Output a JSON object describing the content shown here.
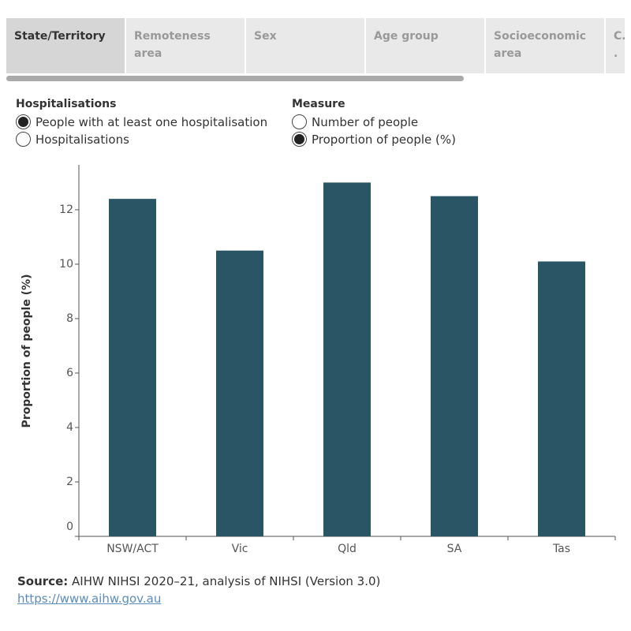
{
  "tabs": {
    "items": [
      "State/Territory",
      "Remoteness area",
      "Sex",
      "Age group",
      "Socioeconomic area",
      "C. ."
    ],
    "selected": 0
  },
  "controls": [
    {
      "title": "Hospitalisations",
      "options": [
        "People with at least one hospitalisation",
        "Hospitalisations"
      ],
      "selected": 0
    },
    {
      "title": "Measure",
      "options": [
        "Number of people",
        "Proportion of people (%)"
      ],
      "selected": 1
    }
  ],
  "chart_data": {
    "type": "bar",
    "y_label": "Proportion of people (%)",
    "categories": [
      "NSW/ACT",
      "Vic",
      "Qld",
      "SA",
      "Tas"
    ],
    "values": [
      12.4,
      10.5,
      13.0,
      12.5,
      10.1
    ],
    "color": "#2a5565",
    "ylim": [
      0,
      13.65
    ],
    "yticks": [
      0,
      2,
      4,
      6,
      8,
      10,
      12
    ],
    "grid": false
  },
  "source": {
    "label": "Source:",
    "text": "AIHW NIHSI 2020–21, analysis of NIHSI (Version 3.0)",
    "link": "https://www.aihw.gov.au"
  }
}
